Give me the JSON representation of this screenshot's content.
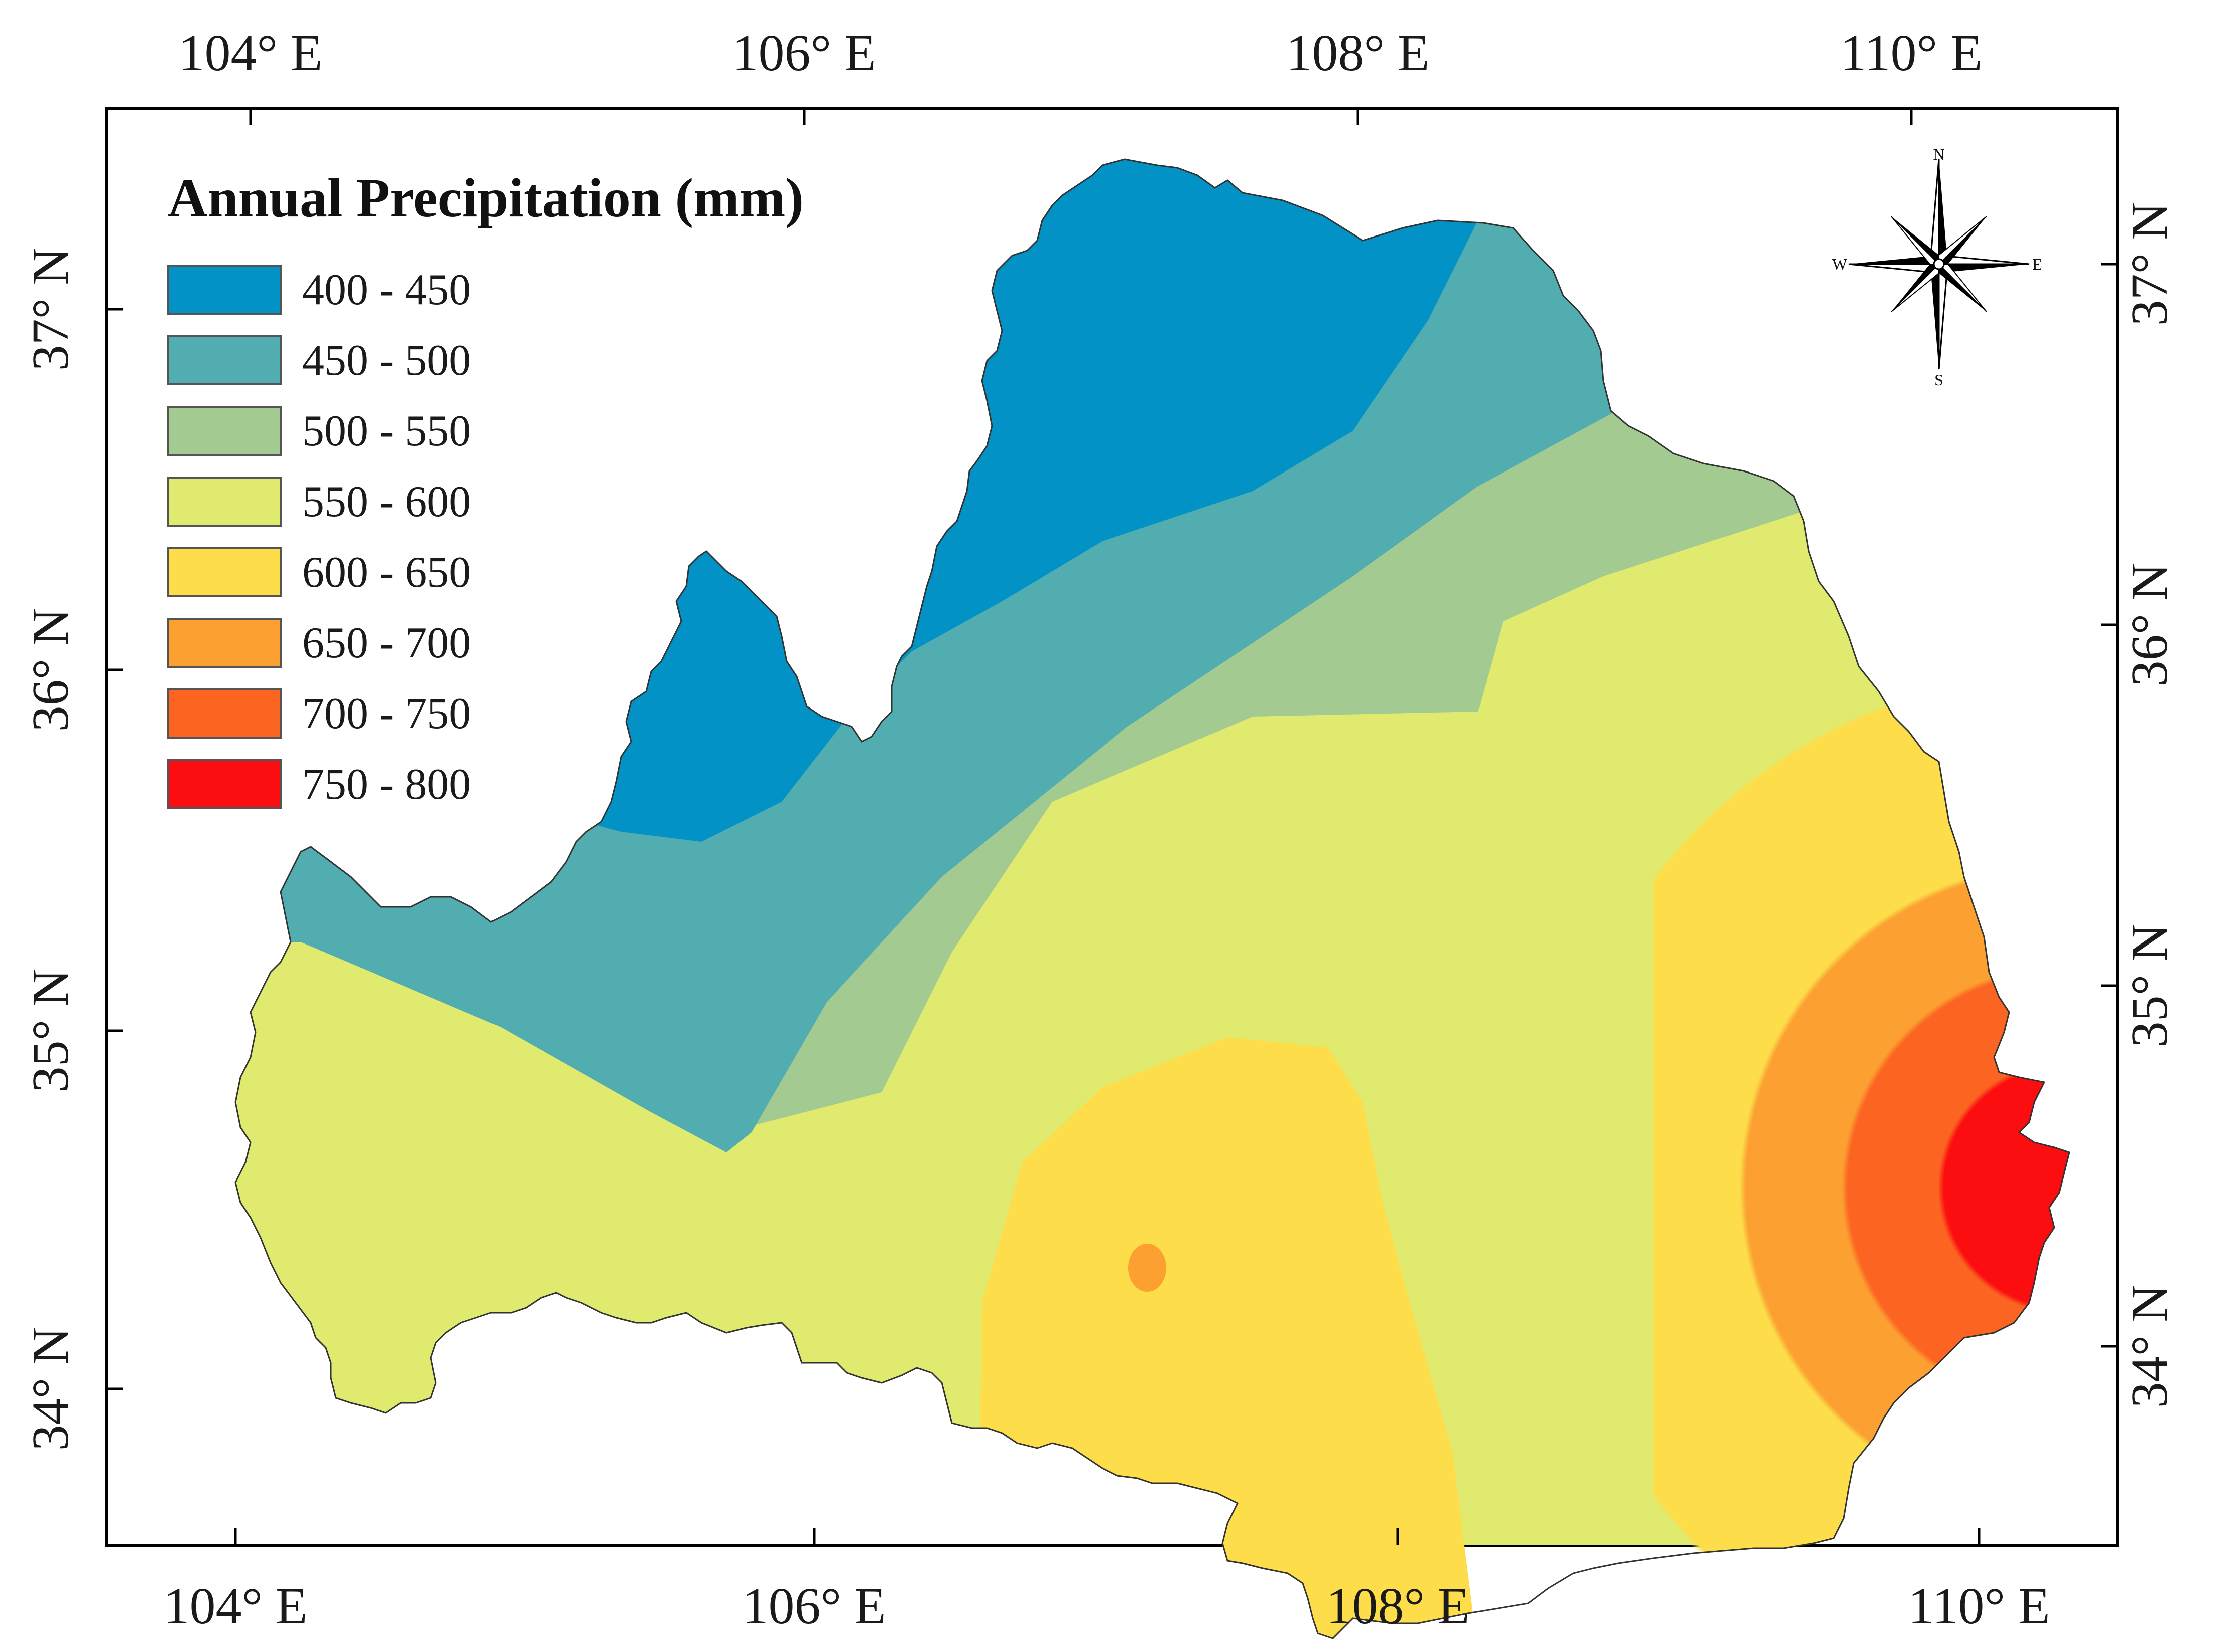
{
  "map": {
    "legend_title": "Annual Precipitation (mm)",
    "legend": [
      {
        "label": "400 - 450",
        "color": "#0392c6"
      },
      {
        "label": "450 - 500",
        "color": "#51adaf"
      },
      {
        "label": "500 - 550",
        "color": "#a2ca91"
      },
      {
        "label": "550 - 600",
        "color": "#e0ea6e"
      },
      {
        "label": "600 - 650",
        "color": "#fddd4a"
      },
      {
        "label": "650 - 700",
        "color": "#fca032"
      },
      {
        "label": "700 - 750",
        "color": "#fc6422"
      },
      {
        "label": "750 - 800",
        "color": "#fb0d10"
      }
    ],
    "top_ticks": [
      "104° E",
      "106° E",
      "108° E",
      "110° E"
    ],
    "bottom_ticks": [
      "104° E",
      "106° E",
      "108° E",
      "110° E"
    ],
    "left_ticks": [
      "37° N",
      "36° N",
      "35° N",
      "34° N"
    ],
    "right_ticks": [
      "37° N",
      "36° N",
      "35° N",
      "34° N"
    ],
    "compass": {
      "n": "N",
      "s": "S",
      "e": "E",
      "w": "W"
    }
  }
}
